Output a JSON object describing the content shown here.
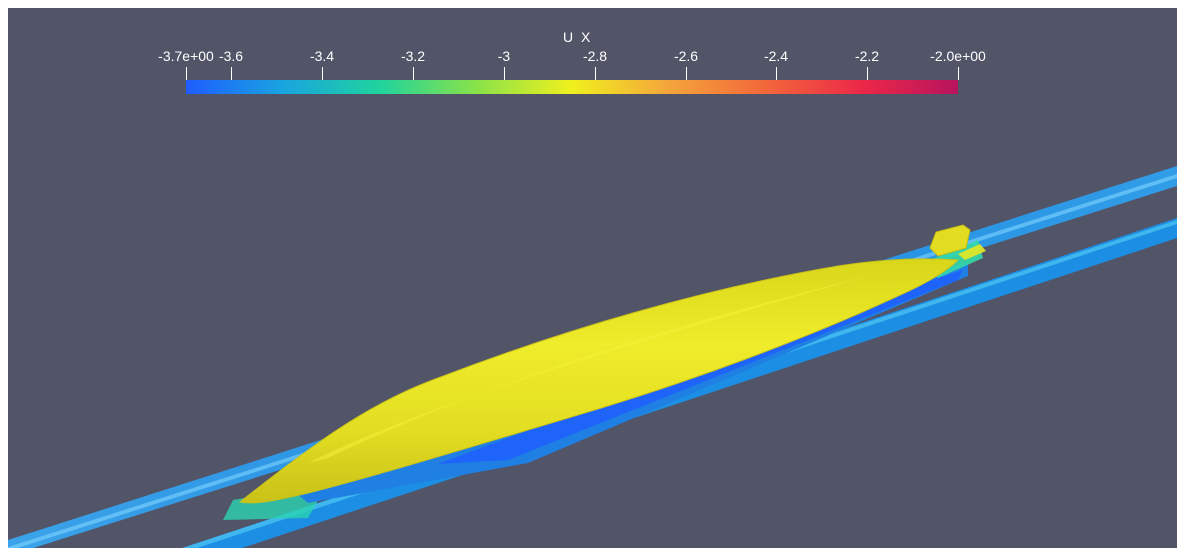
{
  "colorbar": {
    "title": "U X",
    "min_label": "-3.7e+00",
    "max_label": "-2.0e+00",
    "ticks": [
      "-3.6",
      "-3.4",
      "-3.2",
      "-3",
      "-2.8",
      "-2.6",
      "-2.4",
      "-2.2"
    ],
    "range": [
      -3.7,
      -2.0
    ],
    "colormap": [
      "#1e5cff",
      "#19a4e0",
      "#1fd39e",
      "#88e24a",
      "#f0f01e",
      "#f4a53b",
      "#f2683a",
      "#ec2848",
      "#b8145e"
    ]
  },
  "colors": {
    "background": "#525467",
    "hull": "#e6e324",
    "hull_shadow": "#b9b21a",
    "slice_low": "#1a8fe8",
    "slice_mid": "#2bd9c2"
  }
}
